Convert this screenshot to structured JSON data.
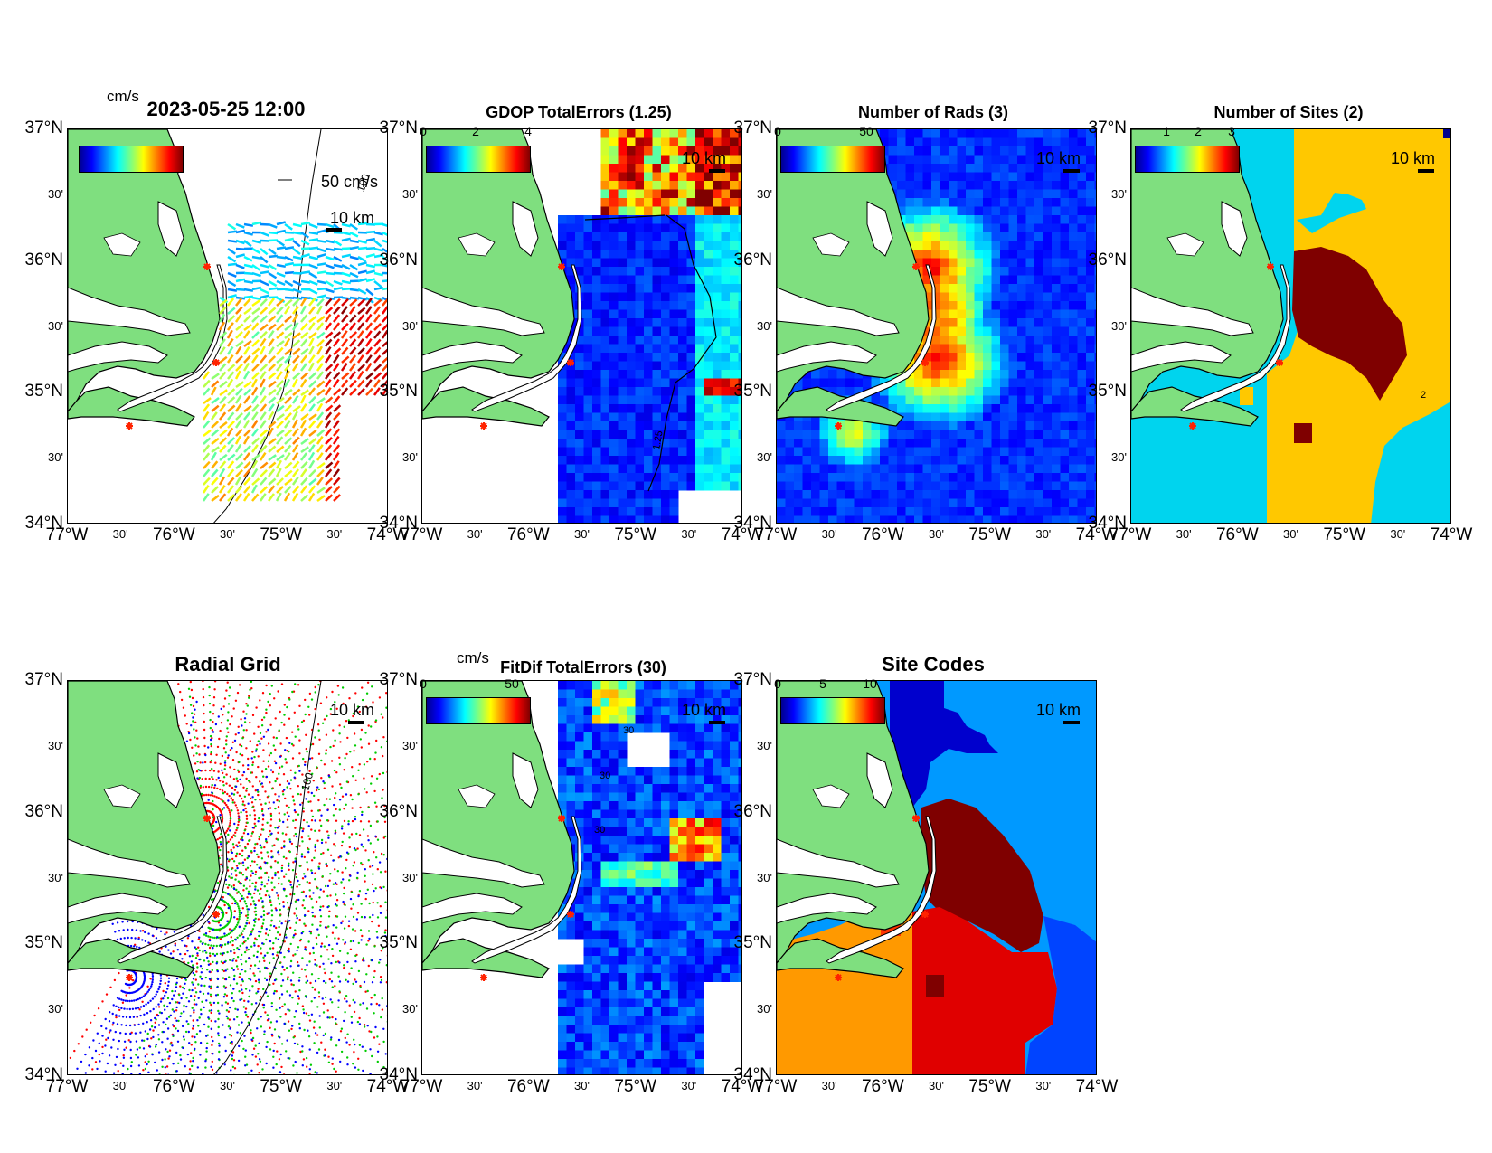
{
  "panels": {
    "p1": {
      "title": "2023-05-25 12:00",
      "cb_units": "cm/s",
      "vec_label": "50 cm/s",
      "scale_label": "10 km",
      "contour_label": "100"
    },
    "p2": {
      "title": "GDOP TotalErrors (1.25)",
      "cb_ticks": [
        "0",
        "2",
        "4"
      ],
      "scale_label": "10 km",
      "contour_label": "1.25"
    },
    "p3": {
      "title": "Number of Rads (3)",
      "cb_ticks": [
        "0",
        "50"
      ],
      "scale_label": "10 km"
    },
    "p4": {
      "title": "Number of Sites (2)",
      "cb_ticks": [
        "1",
        "2",
        "3"
      ],
      "scale_label": "10 km",
      "contour_label": "2"
    },
    "p5": {
      "title": "Radial Grid",
      "scale_label": "10 km",
      "contour_label": "100"
    },
    "p6": {
      "title": "FitDif TotalErrors (30)",
      "cb_units": "cm/s",
      "cb_ticks": [
        "0",
        "50"
      ],
      "scale_label": "10 km",
      "contour_label": "30"
    },
    "p7": {
      "title": "Site Codes",
      "cb_ticks": [
        "0",
        "5",
        "10"
      ],
      "scale_label": "10 km"
    }
  },
  "axes": {
    "lat_major": [
      "37°N",
      "36°N",
      "35°N",
      "34°N"
    ],
    "lat_minor": [
      "30'",
      "30'",
      "30'"
    ],
    "lon_major": [
      "77°W",
      "76°W",
      "75°W",
      "74°W"
    ],
    "lon_minor": [
      "30'",
      "30'",
      "30'"
    ]
  },
  "colors": {
    "land": "#7fdf7f",
    "site_marker": "#ff2200",
    "dark_red": "#7f0000",
    "cyan": "#00d4ee",
    "gold": "#ffc800"
  }
}
